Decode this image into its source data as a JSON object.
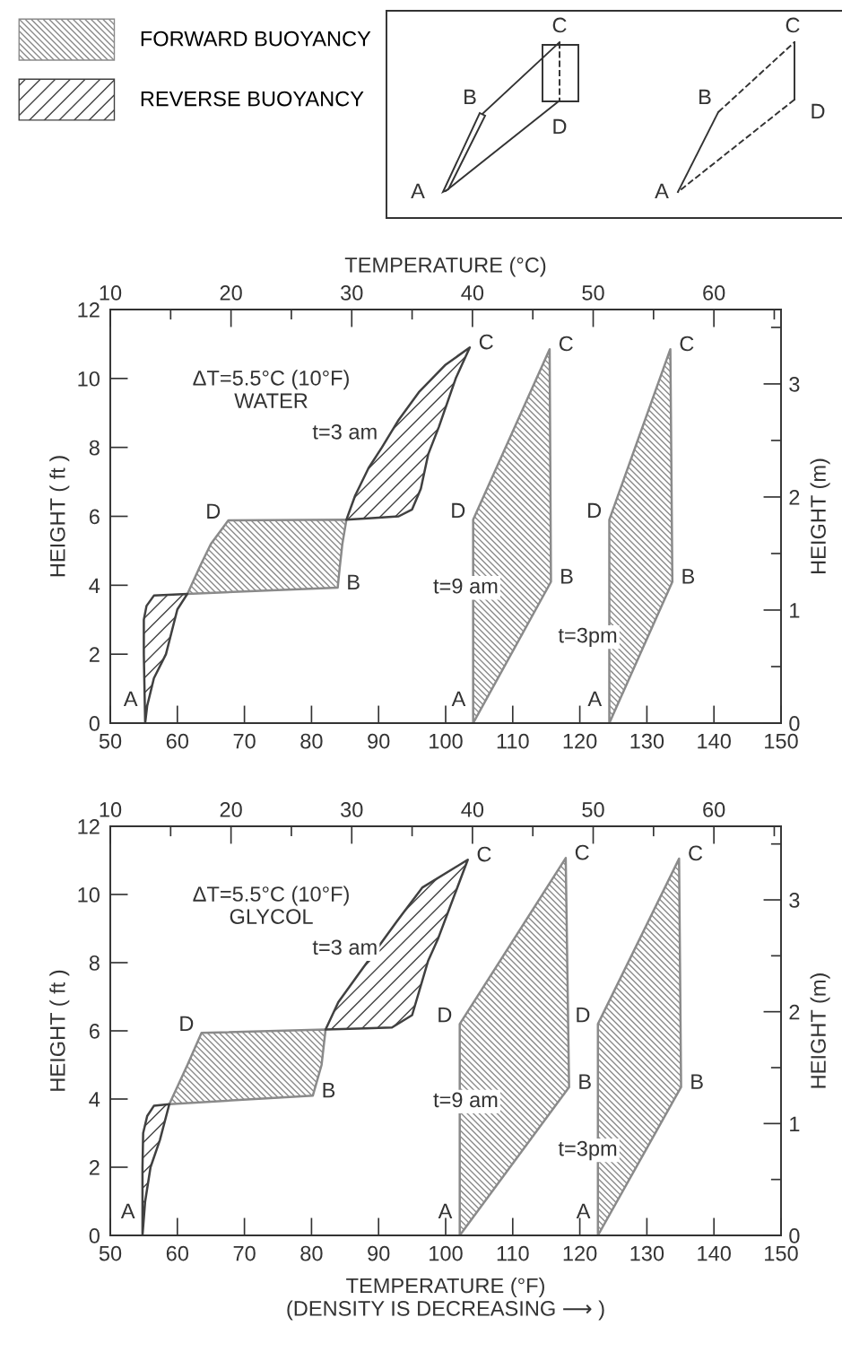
{
  "chart_data": [
    {
      "type": "area",
      "legend": "top left",
      "x2label": "TEMPERATURE (°C)",
      "ylabel": "HEIGHT ( ft )",
      "y2label": "HEIGHT (m)",
      "xlim": [
        50,
        150
      ],
      "xticks": [
        50,
        60,
        70,
        80,
        90,
        100,
        110,
        120,
        130,
        140,
        150
      ],
      "x2lim": [
        10,
        65.56
      ],
      "x2ticks": [
        10,
        20,
        30,
        40,
        50,
        60
      ],
      "ylim": [
        0,
        12
      ],
      "yticks": [
        0,
        2,
        4,
        6,
        8,
        10,
        12
      ],
      "y2lim": [
        0,
        3.658
      ],
      "y2ticks": [
        0,
        1,
        2,
        3
      ],
      "series": [
        {
          "name": "FORWARD BUOYANCY",
          "color": "#8a8a8a",
          "x": [
            61.5,
            63.5,
            65.0,
            67.6,
            85.2,
            84.6,
            84.2,
            83.9,
            61.5
          ],
          "values": [
            3.75,
            4.6,
            5.2,
            5.88,
            5.9,
            5.2,
            4.5,
            3.93,
            3.75
          ]
        },
        {
          "name": "REVERSE BUOYANCY",
          "color": "#404040",
          "x": [
            55.2,
            55.0,
            55.0,
            55.4,
            56.5,
            61.5,
            60.0,
            58.3,
            56.5,
            55.5,
            55.2
          ],
          "values": [
            0,
            2.0,
            3.0,
            3.4,
            3.7,
            3.75,
            3.3,
            2.0,
            1.3,
            0.5,
            0
          ]
        },
        {
          "color": "#404040",
          "x": [
            85.2,
            86.5,
            88.5,
            90.5,
            93.0,
            96.0,
            100.0,
            103.6,
            101.5,
            99.0,
            97.4,
            96.3,
            95.0,
            93.0,
            89.0,
            85.2
          ],
          "values": [
            5.9,
            6.6,
            7.4,
            8.0,
            8.8,
            9.6,
            10.4,
            10.9,
            10.0,
            8.6,
            7.8,
            6.8,
            6.2,
            6.0,
            5.95,
            5.9
          ]
        },
        {
          "color": "#8a8a8a",
          "x": [
            104.1,
            115.7,
            115.5,
            104.1,
            104.1
          ],
          "values": [
            0,
            4.1,
            10.85,
            5.9,
            0
          ]
        },
        {
          "color": "#8a8a8a",
          "x": [
            124.4,
            133.8,
            133.5,
            124.4,
            124.4
          ],
          "values": [
            0,
            4.1,
            10.85,
            5.9,
            0
          ]
        }
      ],
      "annotations": [
        "ΔT=5.5°C (10°F)",
        "WATER",
        "t=3 am",
        "t=9 am",
        "t=3pm",
        {
          "text": "A",
          "x": 55.2,
          "y": 0
        },
        {
          "text": "D",
          "x": 67.6,
          "y": 5.88
        },
        {
          "text": "B",
          "x": 83.9,
          "y": 3.93
        },
        {
          "text": "C",
          "x": 103.6,
          "y": 10.9
        },
        {
          "text": "C",
          "x": 115.5,
          "y": 10.85
        },
        {
          "text": "D",
          "x": 104.1,
          "y": 5.9
        },
        {
          "text": "B",
          "x": 115.7,
          "y": 4.1
        },
        {
          "text": "A",
          "x": 104.1,
          "y": 0
        },
        {
          "text": "C",
          "x": 133.5,
          "y": 10.85
        },
        {
          "text": "D",
          "x": 124.4,
          "y": 5.9
        },
        {
          "text": "B",
          "x": 133.8,
          "y": 4.1
        },
        {
          "text": "A",
          "x": 124.4,
          "y": 0
        }
      ]
    },
    {
      "type": "area",
      "xlabel": "TEMPERATURE (°F)\n(DENSITY IS DECREASING ⟶ )",
      "ylabel": "HEIGHT ( ft )",
      "y2label": "HEIGHT (m)",
      "xlim": [
        50,
        150
      ],
      "xticks": [
        50,
        60,
        70,
        80,
        90,
        100,
        110,
        120,
        130,
        140,
        150
      ],
      "x2lim": [
        10,
        65.56
      ],
      "x2ticks": [
        10,
        20,
        30,
        40,
        50,
        60
      ],
      "ylim": [
        0,
        12
      ],
      "yticks": [
        0,
        2,
        4,
        6,
        8,
        10,
        12
      ],
      "y2lim": [
        0,
        3.658
      ],
      "y2ticks": [
        0,
        1,
        2,
        3
      ],
      "series": [
        {
          "color": "#8a8a8a",
          "x": [
            58.8,
            61.5,
            63.6,
            82.1,
            81.5,
            80.2,
            58.8
          ],
          "values": [
            3.85,
            5.0,
            5.94,
            6.04,
            5.0,
            4.1,
            3.85
          ]
        },
        {
          "color": "#404040",
          "x": [
            54.8,
            54.8,
            54.9,
            55.5,
            56.5,
            58.8,
            57.4,
            56.0,
            55.2,
            54.8
          ],
          "values": [
            0,
            2.0,
            3.0,
            3.5,
            3.8,
            3.85,
            2.8,
            2.0,
            1.0,
            0
          ]
        },
        {
          "color": "#404040",
          "x": [
            82.1,
            84.0,
            87.4,
            92.6,
            96.5,
            103.3,
            98.9,
            97.4,
            95.0,
            92.0,
            88.0,
            82.1
          ],
          "values": [
            6.04,
            6.84,
            7.77,
            9.18,
            10.2,
            11.02,
            8.72,
            8.06,
            6.46,
            6.1,
            6.07,
            6.04
          ]
        },
        {
          "color": "#8a8a8a",
          "x": [
            102.1,
            118.4,
            117.9,
            102.1,
            102.1
          ],
          "values": [
            0,
            4.35,
            11.07,
            6.2,
            0
          ]
        },
        {
          "color": "#8a8a8a",
          "x": [
            122.7,
            135.1,
            134.8,
            122.7,
            122.7
          ],
          "values": [
            0,
            4.35,
            11.05,
            6.2,
            0
          ]
        }
      ],
      "annotations": [
        "ΔT=5.5°C (10°F)",
        "GLYCOL",
        "t=3 am",
        "t=9 am",
        "t=3pm",
        {
          "text": "A",
          "x": 54.8,
          "y": 0
        },
        {
          "text": "D",
          "x": 63.6,
          "y": 5.94
        },
        {
          "text": "B",
          "x": 80.2,
          "y": 4.1
        },
        {
          "text": "C",
          "x": 103.3,
          "y": 11.02
        },
        {
          "text": "C",
          "x": 117.9,
          "y": 11.07
        },
        {
          "text": "D",
          "x": 102.1,
          "y": 6.2
        },
        {
          "text": "B",
          "x": 118.4,
          "y": 4.35
        },
        {
          "text": "A",
          "x": 102.1,
          "y": 0
        },
        {
          "text": "C",
          "x": 134.8,
          "y": 11.05
        },
        {
          "text": "D",
          "x": 122.7,
          "y": 6.2
        },
        {
          "text": "B",
          "x": 135.1,
          "y": 4.35
        },
        {
          "text": "A",
          "x": 122.7,
          "y": 0
        }
      ]
    },
    {
      "type": "other",
      "annotations": [
        "A",
        "B",
        "C",
        "D",
        "A",
        "B",
        "C",
        "D"
      ]
    }
  ]
}
